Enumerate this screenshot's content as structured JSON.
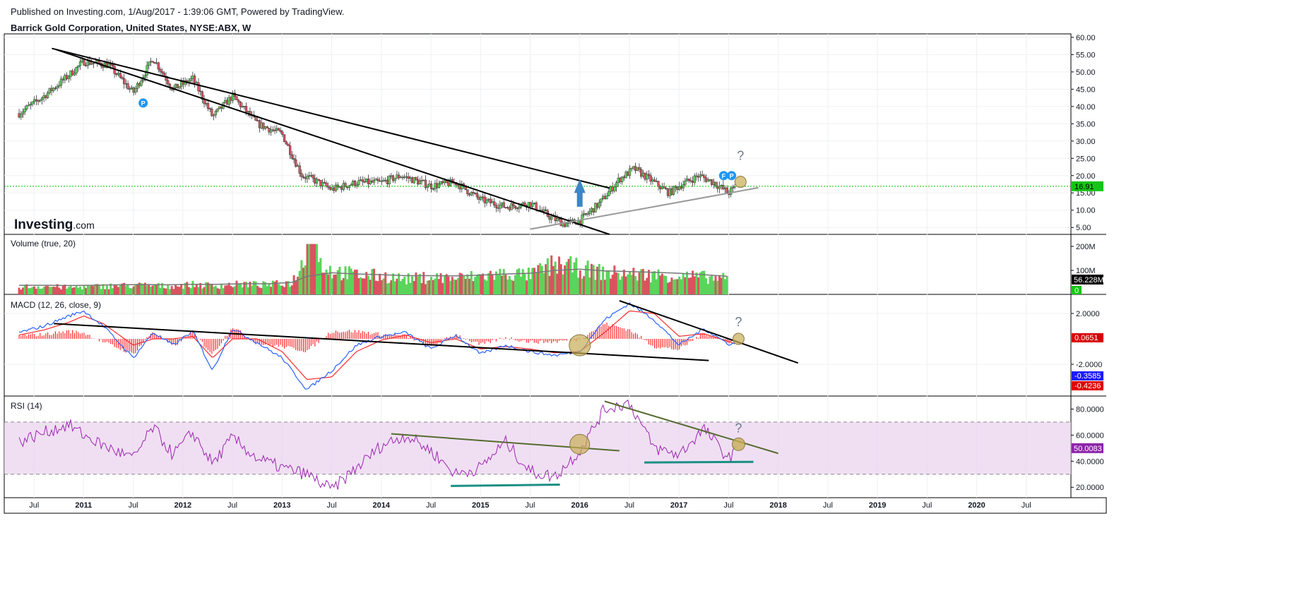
{
  "header": {
    "published": "Published on Investing.com, 1/Aug/2017 - 1:39:06 GMT, Powered by TradingView.",
    "title": "Barrick Gold Corporation, United States, NYSE:ABX, W"
  },
  "logo": {
    "bold": "Investing",
    "light": ".com"
  },
  "colors": {
    "up": "#5bd45b",
    "down": "#d9535f",
    "macd": "#2962ff",
    "signal": "#ff2a2a",
    "rsi": "#9c27b0",
    "rsi_band": "#e9d2ee",
    "price_line": "#00c000",
    "circle": "#c8ad55",
    "teal": "#1b8f84",
    "olive": "#556b2f",
    "arrow": "#3d86c6"
  },
  "chart_data": [
    {
      "type": "candlestick",
      "title": "Barrick Gold Corporation, United States, NYSE:ABX, W",
      "y_ticks": [
        "60.00",
        "55.00",
        "50.00",
        "45.00",
        "40.00",
        "35.00",
        "30.00",
        "25.00",
        "20.00",
        "15.00",
        "10.00",
        "5.00"
      ],
      "ylim": [
        3,
        61
      ],
      "last_price_label": "16.91",
      "last_price": 16.91,
      "series": [
        {
          "x": [
            2010.35,
            2010.6,
            2010.85,
            2011.0,
            2011.25,
            2011.5,
            2011.7,
            2011.9,
            2012.1,
            2012.3,
            2012.5,
            2012.75,
            2013.0,
            2013.2,
            2013.3,
            2013.5,
            2013.75,
            2014.0,
            2014.2,
            2014.5,
            2014.75,
            2015.0,
            2015.25,
            2015.5,
            2015.7,
            2015.85,
            2016.0,
            2016.2,
            2016.4,
            2016.55,
            2016.7,
            2016.9,
            2017.0,
            2017.2,
            2017.35,
            2017.5,
            2017.58
          ],
          "y": [
            38,
            43,
            49,
            53,
            52,
            44,
            54,
            45,
            48,
            37,
            43,
            35,
            32,
            20,
            19,
            16,
            18,
            18,
            20,
            17,
            18,
            13,
            11,
            12,
            8,
            6,
            7,
            12,
            19,
            22,
            19,
            15,
            17,
            20,
            18,
            15,
            16.91
          ]
        }
      ],
      "annotations": [
        "P",
        "F",
        "P",
        "?"
      ]
    },
    {
      "type": "bar",
      "title": "Volume (true, 20)",
      "y_ticks": [
        "200M",
        "100M"
      ],
      "ylim": [
        0,
        250
      ],
      "value_labels": [
        "56.228M",
        "0"
      ],
      "series": [
        {
          "name": "Volume",
          "x": [
            2010.35,
            2010.6,
            2010.85,
            2011.1,
            2011.35,
            2011.6,
            2011.85,
            2012.1,
            2012.35,
            2012.6,
            2012.85,
            2013.1,
            2013.25,
            2013.5,
            2013.75,
            2014.0,
            2014.25,
            2014.5,
            2014.75,
            2015.0,
            2015.25,
            2015.5,
            2015.75,
            2016.0,
            2016.25,
            2016.5,
            2016.75,
            2017.0,
            2017.25,
            2017.5
          ],
          "values": [
            35,
            38,
            32,
            36,
            40,
            42,
            38,
            45,
            40,
            48,
            44,
            55,
            180,
            110,
            90,
            85,
            70,
            80,
            75,
            85,
            95,
            90,
            140,
            120,
            100,
            95,
            90,
            85,
            80,
            70
          ]
        },
        {
          "name": "MA",
          "values": [
            38,
            38,
            37,
            38,
            40,
            41,
            40,
            42,
            42,
            44,
            44,
            50,
            75,
            90,
            85,
            82,
            78,
            78,
            77,
            80,
            85,
            88,
            100,
            105,
            98,
            95,
            92,
            88,
            82,
            75
          ]
        }
      ]
    },
    {
      "type": "line",
      "title": "MACD (12, 26, close, 9)",
      "y_ticks": [
        "2.0000",
        "-2.0000"
      ],
      "ylim": [
        -4.5,
        3.5
      ],
      "value_labels": [
        "0.0651",
        "-0.3585",
        "-0.4236"
      ],
      "x": [
        2010.35,
        2010.6,
        2010.85,
        2011.0,
        2011.2,
        2011.5,
        2011.7,
        2011.9,
        2012.1,
        2012.3,
        2012.5,
        2012.75,
        2013.0,
        2013.25,
        2013.5,
        2013.75,
        2014.0,
        2014.25,
        2014.5,
        2014.75,
        2015.0,
        2015.25,
        2015.5,
        2015.75,
        2016.0,
        2016.25,
        2016.5,
        2016.75,
        2017.0,
        2017.25,
        2017.5,
        2017.58
      ],
      "series": [
        {
          "name": "MACD",
          "values": [
            0.5,
            1.0,
            1.8,
            2.2,
            1.0,
            -1.5,
            0.5,
            -0.5,
            0.6,
            -2.5,
            0.8,
            -0.3,
            -1.5,
            -4.0,
            -2.5,
            -0.5,
            0.2,
            0.5,
            -0.8,
            0.3,
            -1.2,
            -0.5,
            -1.0,
            -1.3,
            -1.0,
            1.5,
            2.8,
            1.5,
            -0.5,
            0.8,
            -0.4,
            -0.3585
          ]
        },
        {
          "name": "Signal",
          "values": [
            0.3,
            0.7,
            1.3,
            1.8,
            1.2,
            -0.5,
            0.0,
            0.0,
            0.2,
            -1.5,
            0.0,
            0.0,
            -1.0,
            -3.2,
            -3.0,
            -1.0,
            -0.1,
            0.3,
            -0.3,
            0.0,
            -0.8,
            -0.6,
            -0.8,
            -1.1,
            -1.0,
            0.5,
            2.2,
            2.0,
            0.2,
            0.4,
            -0.2,
            -0.4236
          ]
        }
      ]
    },
    {
      "type": "line",
      "title": "RSI (14)",
      "y_ticks": [
        "80.0000",
        "60.0000",
        "40.0000",
        "20.0000"
      ],
      "ylim": [
        12,
        90
      ],
      "bands": [
        30,
        70
      ],
      "value_labels": [
        "50.0083"
      ],
      "x": [
        2010.35,
        2010.6,
        2010.85,
        2011.0,
        2011.2,
        2011.5,
        2011.7,
        2011.9,
        2012.1,
        2012.3,
        2012.5,
        2012.75,
        2013.0,
        2013.25,
        2013.5,
        2013.75,
        2014.0,
        2014.25,
        2014.5,
        2014.75,
        2015.0,
        2015.25,
        2015.5,
        2015.75,
        2016.0,
        2016.25,
        2016.5,
        2016.75,
        2017.0,
        2017.25,
        2017.5,
        2017.58
      ],
      "series": [
        {
          "name": "RSI",
          "values": [
            55,
            62,
            68,
            60,
            52,
            42,
            66,
            45,
            62,
            38,
            58,
            42,
            35,
            30,
            18,
            35,
            52,
            60,
            48,
            30,
            35,
            55,
            32,
            28,
            48,
            80,
            85,
            50,
            45,
            65,
            42,
            50.0083
          ]
        }
      ],
      "x_ticks": [
        "Jul",
        "2011",
        "Jul",
        "2012",
        "Jul",
        "2013",
        "Jul",
        "2014",
        "Jul",
        "2015",
        "Jul",
        "2016",
        "Jul",
        "2017",
        "Jul",
        "2018",
        "Jul",
        "2019",
        "Jul",
        "2020",
        "Jul"
      ],
      "xlim": [
        2010.2,
        2020.95
      ]
    }
  ]
}
